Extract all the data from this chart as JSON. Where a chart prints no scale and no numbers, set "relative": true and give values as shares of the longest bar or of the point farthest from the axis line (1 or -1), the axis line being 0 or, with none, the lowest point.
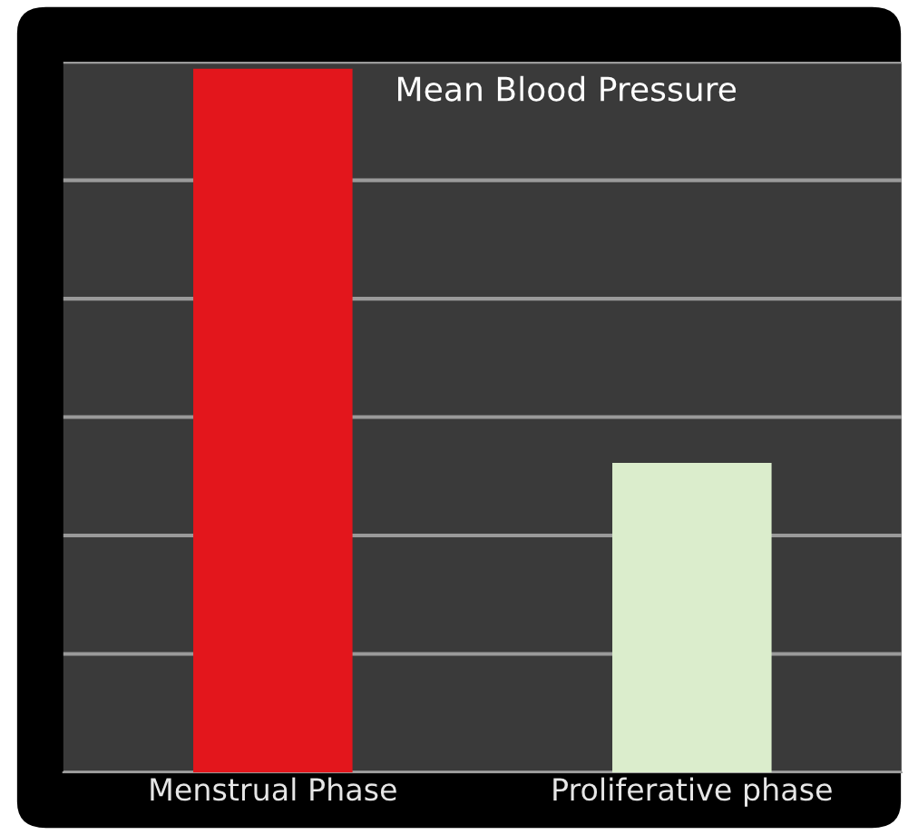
{
  "chart_data": {
    "type": "bar",
    "title": "Mean Blood Pressure",
    "relative": true,
    "categories": [
      "Menstrual Phase",
      "Proliferative phase"
    ],
    "values": [
      1,
      0.44
    ],
    "colors": [
      "#e3161c",
      "#dbedcc"
    ],
    "grid": "y"
  }
}
